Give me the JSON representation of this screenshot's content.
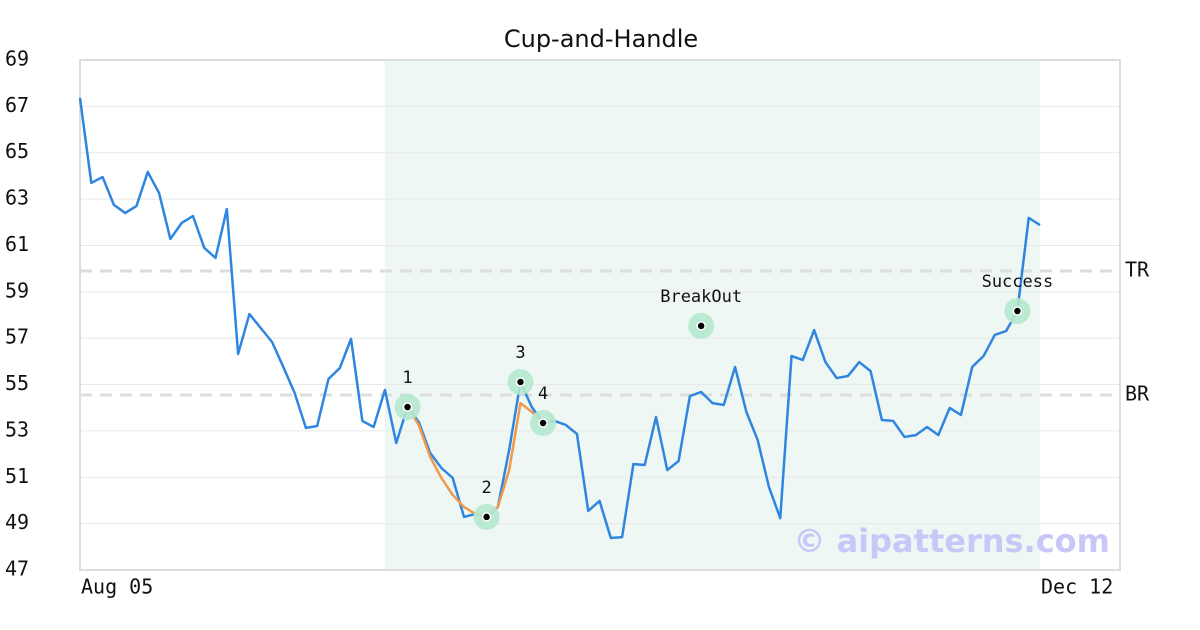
{
  "chart_data": {
    "type": "line",
    "title": "Cup-and-Handle",
    "categories": [
      "Aug 05",
      null,
      null,
      null,
      null,
      null,
      null,
      null,
      null,
      null,
      null,
      null,
      null,
      null,
      null,
      null,
      null,
      null,
      null,
      null,
      null,
      null,
      null,
      null,
      null,
      null,
      null,
      null,
      null,
      null,
      null,
      null,
      null,
      null,
      null,
      null,
      null,
      null,
      null,
      null,
      null,
      null,
      null,
      null,
      null,
      null,
      null,
      null,
      null,
      null,
      null,
      null,
      null,
      null,
      null,
      null,
      null,
      null,
      null,
      null,
      null,
      null,
      null,
      null,
      null,
      null,
      null,
      null,
      null,
      null,
      null,
      null,
      null,
      null,
      null,
      null,
      null,
      null,
      null,
      null,
      null,
      null,
      null,
      null,
      null,
      "Dec 12"
    ],
    "series": [
      {
        "color": "#2f86e0",
        "values": [
          67.36,
          63.7,
          63.95,
          62.75,
          62.4,
          62.7,
          64.17,
          63.26,
          61.28,
          61.97,
          62.27,
          60.9,
          60.46,
          62.57,
          56.32,
          58.04,
          57.44,
          56.84,
          55.76,
          54.64,
          53.13,
          53.21,
          55.24,
          55.71,
          56.97,
          53.43,
          53.17,
          54.77,
          52.48,
          54.03,
          53.38,
          52.05,
          51.4,
          50.97,
          49.29,
          49.42,
          49.29,
          49.72,
          52.18,
          55.11,
          54.03,
          53.34,
          53.43,
          53.26,
          52.87,
          49.55,
          49.98,
          48.38,
          48.42,
          51.57,
          51.53,
          53.6,
          51.31,
          51.7,
          54.5,
          54.68,
          54.2,
          54.12,
          55.76,
          53.82,
          52.61,
          50.58,
          49.24,
          56.23,
          56.06,
          57.35,
          55.97,
          55.28,
          55.37,
          55.97,
          55.58,
          53.47,
          53.43,
          52.74,
          52.82,
          53.17,
          52.82,
          53.99,
          53.69,
          55.76,
          56.23,
          57.14,
          57.31,
          58.17,
          62.19,
          61.88
        ]
      },
      {
        "color": "#f0994a",
        "values": [
          null,
          null,
          null,
          null,
          null,
          null,
          null,
          null,
          null,
          null,
          null,
          null,
          null,
          null,
          null,
          null,
          null,
          null,
          null,
          null,
          null,
          null,
          null,
          null,
          null,
          null,
          null,
          null,
          null,
          54.03,
          53.25,
          51.88,
          50.97,
          50.24,
          49.72,
          49.42,
          49.42,
          49.72,
          51.31,
          54.2,
          53.82,
          53.34,
          null,
          null,
          null,
          null,
          null,
          null,
          null,
          null,
          null,
          null,
          null,
          null,
          null,
          null,
          null,
          null,
          null,
          null,
          null,
          null,
          null,
          null,
          null,
          null,
          null,
          null,
          null,
          null,
          null,
          null,
          null,
          null,
          null,
          null,
          null,
          null,
          null,
          null,
          null,
          null,
          null,
          null,
          null,
          null
        ]
      }
    ],
    "annotations": [
      {
        "label": "1",
        "index": 29,
        "value": 54.03
      },
      {
        "label": "2",
        "index": 36,
        "value": 49.29
      },
      {
        "label": "3",
        "index": 39,
        "value": 55.11
      },
      {
        "label": "4",
        "index": 41,
        "value": 53.34
      },
      {
        "label": "BreakOut",
        "index": 55,
        "value": 57.53
      },
      {
        "label": "Success",
        "index": 83,
        "value": 58.17
      }
    ],
    "levels": [
      {
        "label": "TR",
        "value": 59.9
      },
      {
        "label": "BR",
        "value": 54.55
      }
    ],
    "highlight": [
      27,
      85
    ],
    "ylim": [
      47,
      69
    ],
    "yticks": [
      47,
      49,
      51,
      53,
      55,
      57,
      59,
      61,
      63,
      65,
      67,
      69
    ],
    "grid": true,
    "watermark": "© aipatterns.com"
  }
}
